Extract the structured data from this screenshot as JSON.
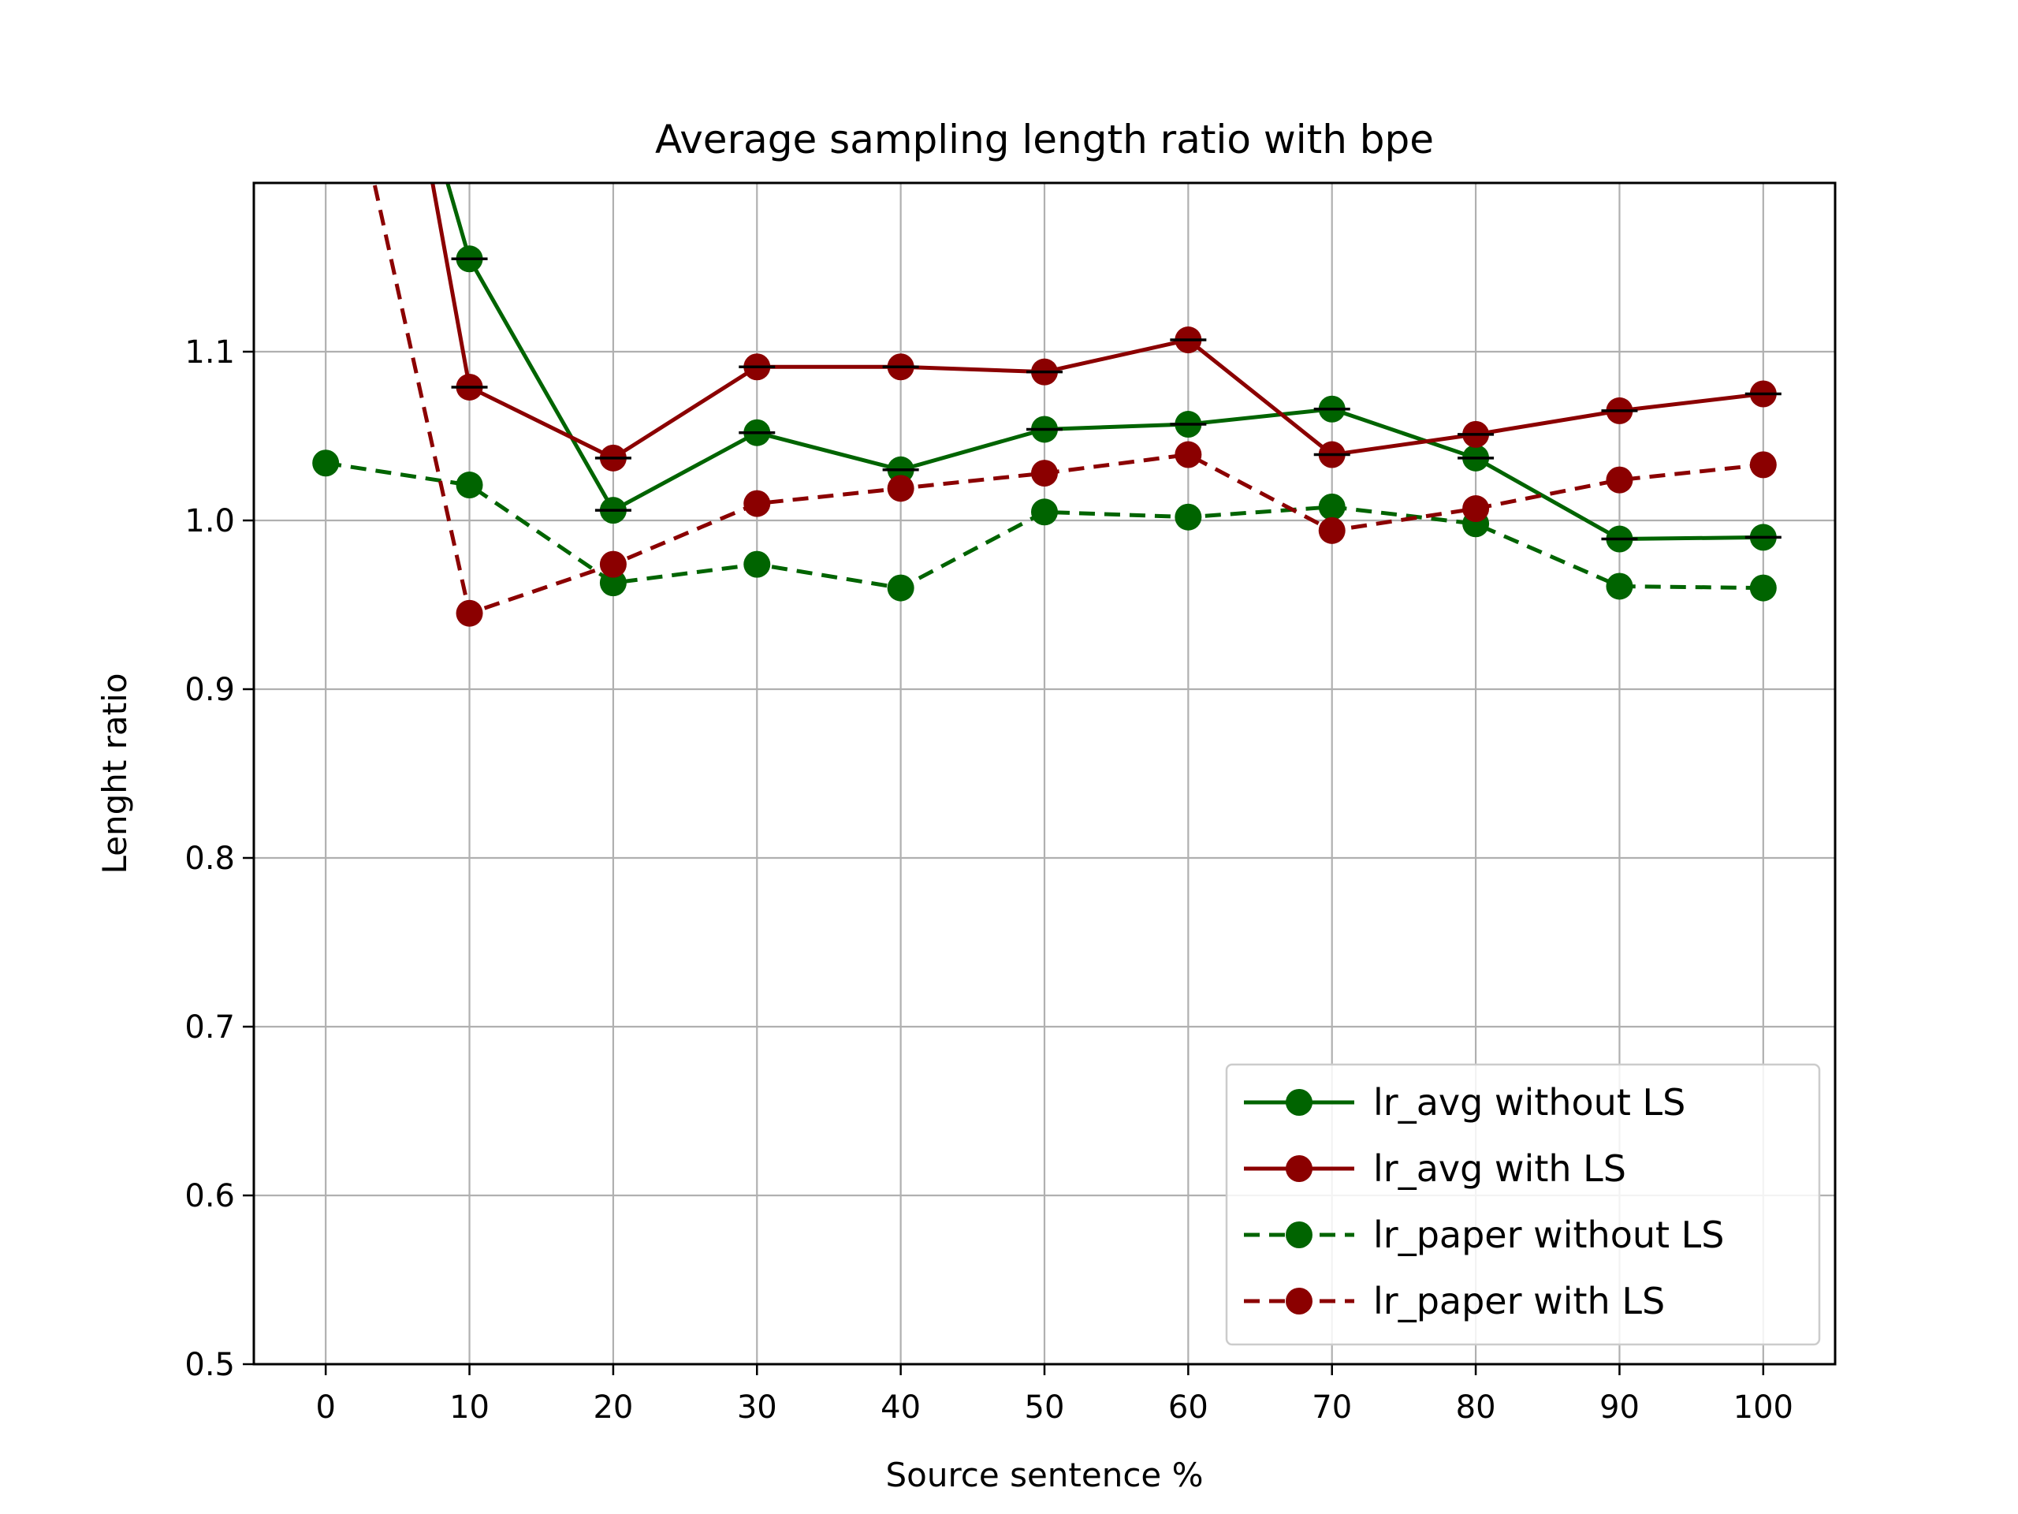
{
  "chart_data": {
    "type": "line",
    "title": "Average sampling length ratio with bpe",
    "xlabel": "Source sentence %",
    "ylabel": "Lenght ratio",
    "xlim": [
      -5,
      105
    ],
    "ylim": [
      0.5,
      1.2
    ],
    "xticks": [
      0,
      10,
      20,
      30,
      40,
      50,
      60,
      70,
      80,
      90,
      100
    ],
    "xtick_labels": [
      "0",
      "10",
      "20",
      "30",
      "40",
      "50",
      "60",
      "70",
      "80",
      "90",
      "100"
    ],
    "yticks": [
      0.5,
      0.6,
      0.7,
      0.8,
      0.9,
      1.0,
      1.1
    ],
    "ytick_labels": [
      "0.5",
      "0.6",
      "0.7",
      "0.8",
      "0.9",
      "1.0",
      "1.1"
    ],
    "grid": true,
    "legend_position": "lower-right",
    "series": [
      {
        "name": "lr_avg without LS",
        "color": "#006400",
        "linestyle": "solid",
        "x": [
          0,
          10,
          20,
          30,
          40,
          50,
          60,
          70,
          80,
          90,
          100
        ],
        "y": [
          1.45,
          1.155,
          1.006,
          1.052,
          1.03,
          1.054,
          1.057,
          1.066,
          1.037,
          0.989,
          0.99
        ],
        "marker_x": [
          10,
          20,
          30,
          40,
          50,
          60,
          70,
          80,
          90,
          100
        ],
        "error_bars": true
      },
      {
        "name": "lr_avg with LS",
        "color": "#8b0000",
        "linestyle": "solid",
        "x": [
          0,
          10,
          20,
          30,
          40,
          50,
          60,
          70,
          80,
          90,
          100
        ],
        "y": [
          1.55,
          1.079,
          1.037,
          1.091,
          1.091,
          1.088,
          1.107,
          1.039,
          1.051,
          1.065,
          1.075
        ],
        "marker_x": [
          10,
          20,
          30,
          40,
          50,
          60,
          70,
          80,
          90,
          100
        ],
        "error_bars": true
      },
      {
        "name": "lr_paper without LS",
        "color": "#006400",
        "linestyle": "dashed",
        "x": [
          0,
          10,
          20,
          30,
          40,
          50,
          60,
          70,
          80,
          90,
          100
        ],
        "y": [
          1.034,
          1.021,
          0.963,
          0.974,
          0.96,
          1.005,
          1.002,
          1.008,
          0.998,
          0.961,
          0.96
        ],
        "marker_x": [
          0,
          10,
          20,
          30,
          40,
          50,
          60,
          70,
          80,
          90,
          100
        ],
        "error_bars": false
      },
      {
        "name": "lr_paper with LS",
        "color": "#8b0000",
        "linestyle": "dashed",
        "x": [
          0,
          10,
          20,
          30,
          40,
          50,
          60,
          70,
          80,
          90,
          100
        ],
        "y": [
          1.33,
          0.945,
          0.974,
          1.01,
          1.019,
          1.028,
          1.039,
          0.994,
          1.007,
          1.024,
          1.033
        ],
        "marker_x": [
          10,
          20,
          30,
          40,
          50,
          60,
          70,
          80,
          90,
          100
        ],
        "error_bars": false
      }
    ]
  }
}
